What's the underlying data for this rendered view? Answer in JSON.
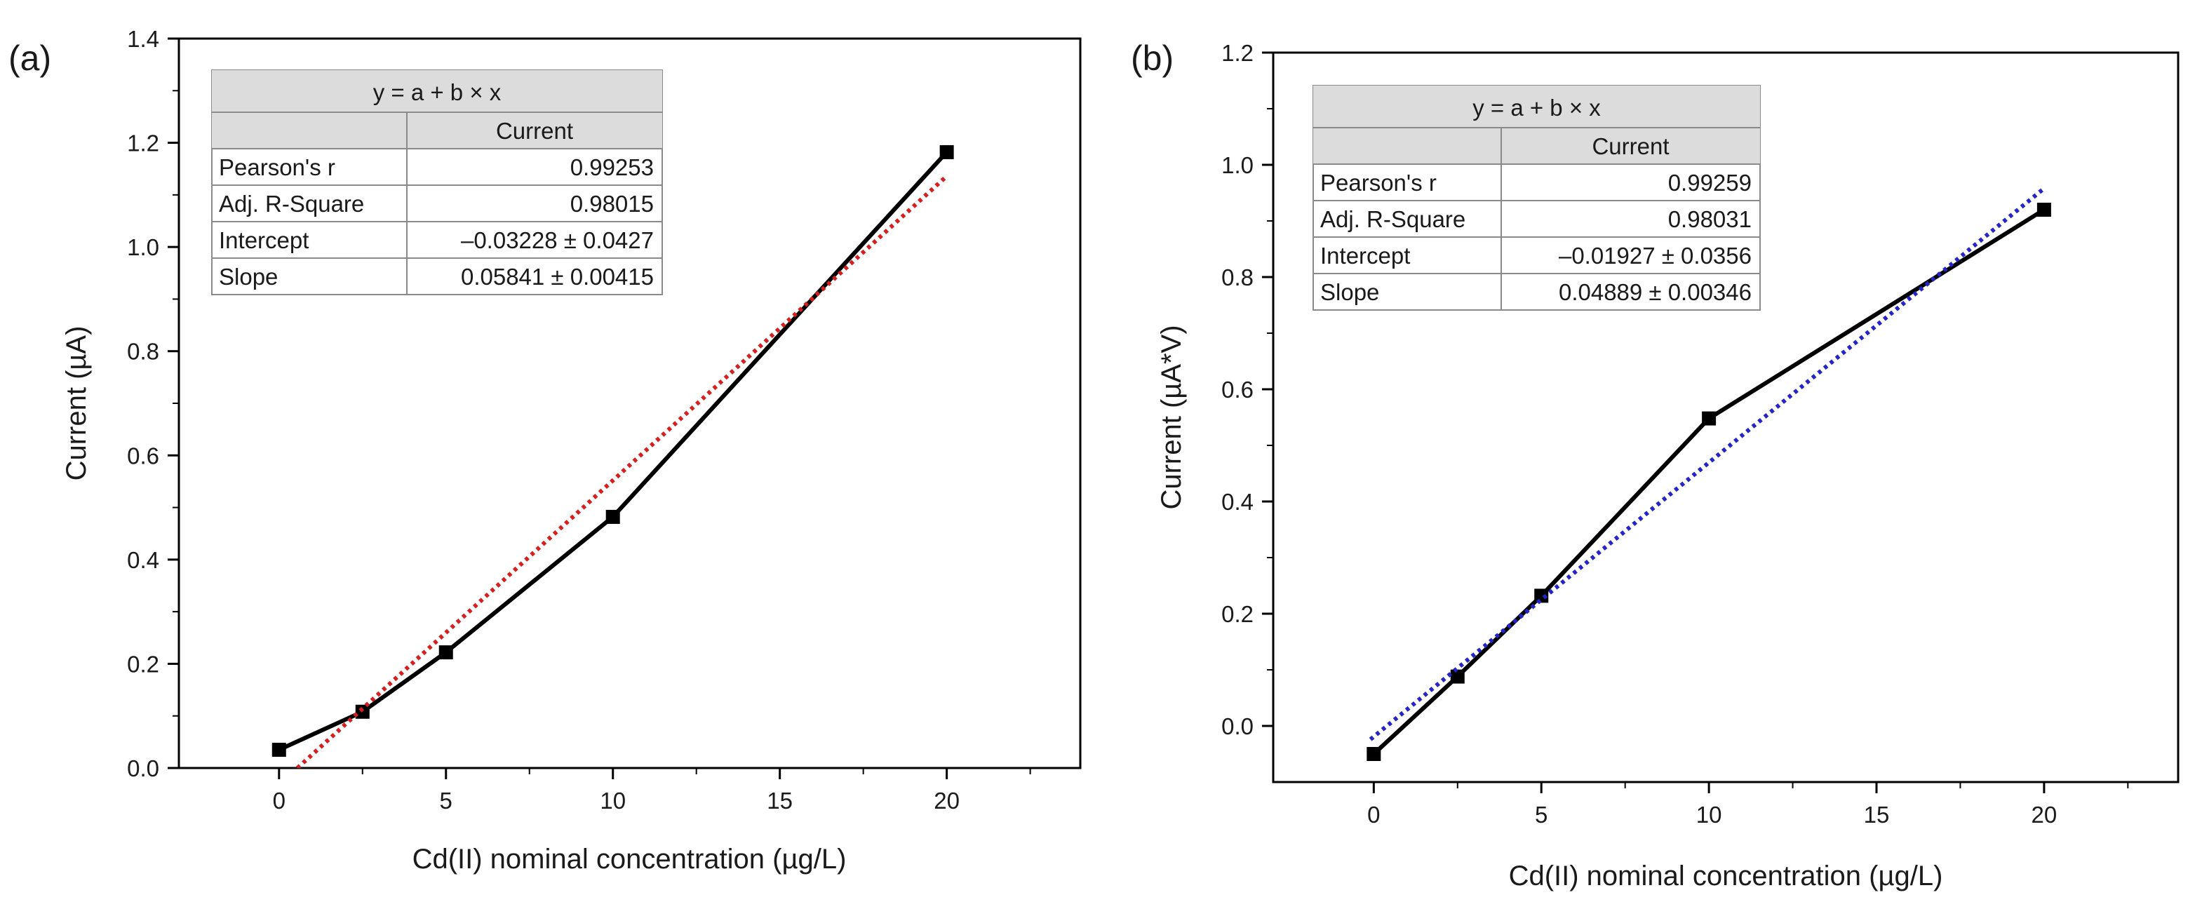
{
  "chart_data": [
    {
      "type": "line",
      "panel_label": "(a)",
      "title": "",
      "xlabel": "Cd(II) nominal concentration (µg/L)",
      "ylabel": "Current (µA)",
      "xlim": [
        -3,
        24
      ],
      "ylim": [
        0.0,
        1.4
      ],
      "xticks": [
        "0",
        "5",
        "10",
        "15",
        "20"
      ],
      "yticks": [
        "0.0",
        "0.2",
        "0.4",
        "0.6",
        "0.8",
        "1.0",
        "1.2",
        "1.4"
      ],
      "grid": false,
      "series": [
        {
          "name": "Current",
          "style": "solid-with-square-markers",
          "color": "#000000",
          "x": [
            0,
            2.5,
            5,
            10,
            20
          ],
          "y": [
            0.035,
            0.108,
            0.222,
            0.482,
            1.182
          ]
        },
        {
          "name": "Linear fit",
          "style": "dotted",
          "color": "#d62020",
          "x": [
            0.55,
            20
          ],
          "y": [
            0.0,
            1.136
          ]
        }
      ],
      "fit_table": {
        "equation": "y = a + b × x",
        "column": "Current",
        "rows": [
          {
            "label": "Pearson's r",
            "value": "0.99253"
          },
          {
            "label": "Adj. R-Square",
            "value": "0.98015"
          },
          {
            "label": "Intercept",
            "value": "–0.03228 ± 0.0427"
          },
          {
            "label": "Slope",
            "value": "0.05841 ± 0.00415"
          }
        ]
      }
    },
    {
      "type": "line",
      "panel_label": "(b)",
      "title": "",
      "xlabel": "Cd(II) nominal concentration (µg/L)",
      "ylabel": "Current (µA*V)",
      "xlim": [
        -3,
        24
      ],
      "ylim": [
        -0.1,
        1.2
      ],
      "xticks": [
        "0",
        "5",
        "10",
        "15",
        "20"
      ],
      "yticks": [
        "0.0",
        "0.2",
        "0.4",
        "0.6",
        "0.8",
        "1.0",
        "1.2"
      ],
      "grid": false,
      "series": [
        {
          "name": "Current",
          "style": "solid-with-square-markers",
          "color": "#000000",
          "x": [
            0,
            2.5,
            5,
            10,
            20
          ],
          "y": [
            -0.05,
            0.088,
            0.232,
            0.548,
            0.92
          ]
        },
        {
          "name": "Linear fit",
          "style": "dotted",
          "color": "#2424c8",
          "x": [
            -0.1,
            20
          ],
          "y": [
            -0.024,
            0.958
          ]
        }
      ],
      "fit_table": {
        "equation": "y = a + b × x",
        "column": "Current",
        "rows": [
          {
            "label": "Pearson's r",
            "value": "0.99259"
          },
          {
            "label": "Adj. R-Square",
            "value": "0.98031"
          },
          {
            "label": "Intercept",
            "value": "–0.01927 ± 0.0356"
          },
          {
            "label": "Slope",
            "value": "0.04889 ± 0.00346"
          }
        ]
      }
    }
  ]
}
